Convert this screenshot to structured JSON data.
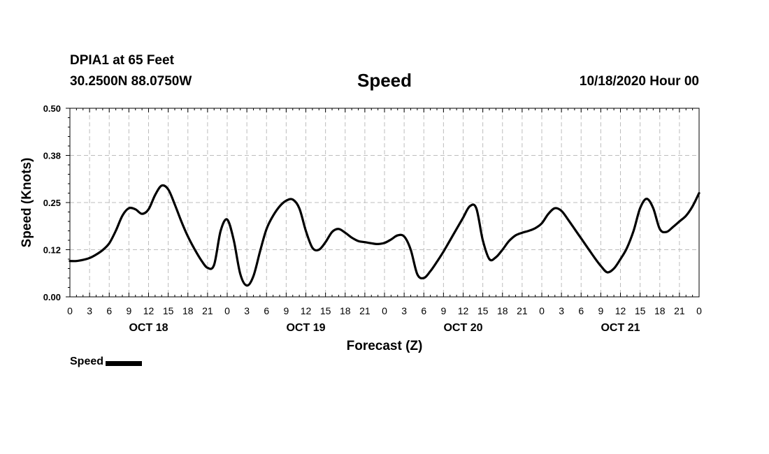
{
  "header": {
    "station": "DPIA1 at 65 Feet",
    "coordinates": "30.2500N 88.0750W",
    "run_time": "10/18/2020 Hour 00"
  },
  "chart_data": {
    "type": "line",
    "title": "Speed",
    "xlabel": "Forecast (Z)",
    "ylabel": "Speed (Knots)",
    "ylim": [
      0,
      0.5
    ],
    "xlim": [
      0,
      96
    ],
    "grid": true,
    "legend_position": "bottom-left",
    "y_ticks": [
      "0.00",
      "0.12",
      "0.25",
      "0.38",
      "0.50"
    ],
    "y_tick_values": [
      0,
      0.125,
      0.25,
      0.375,
      0.5
    ],
    "x_tick_labels": [
      "0",
      "3",
      "6",
      "9",
      "12",
      "15",
      "18",
      "21",
      "0",
      "3",
      "6",
      "9",
      "12",
      "15",
      "18",
      "21",
      "0",
      "3",
      "6",
      "9",
      "12",
      "15",
      "18",
      "21",
      "0",
      "3",
      "6",
      "9",
      "12",
      "15",
      "18",
      "21",
      "0"
    ],
    "day_labels": [
      {
        "label": "OCT 18",
        "hour": 12
      },
      {
        "label": "OCT 19",
        "hour": 36
      },
      {
        "label": "OCT 20",
        "hour": 60
      },
      {
        "label": "OCT 21",
        "hour": 84
      }
    ],
    "series": [
      {
        "name": "Speed",
        "color": "#000000",
        "x": [
          0,
          1,
          2,
          3,
          4,
          5,
          6,
          7,
          8,
          9,
          10,
          11,
          12,
          13,
          14,
          15,
          16,
          17,
          18,
          19,
          20,
          21,
          22,
          23,
          24,
          25,
          26,
          27,
          28,
          29,
          30,
          31,
          32,
          33,
          34,
          35,
          36,
          37,
          38,
          39,
          40,
          41,
          42,
          43,
          44,
          45,
          46,
          47,
          48,
          49,
          50,
          51,
          52,
          53,
          54,
          55,
          56,
          57,
          58,
          59,
          60,
          61,
          62,
          63,
          64,
          65,
          66,
          67,
          68,
          69,
          70,
          71,
          72,
          73,
          74,
          75,
          76,
          77,
          78,
          79,
          80,
          81,
          82,
          83,
          84,
          85,
          86,
          87,
          88,
          89,
          90,
          91,
          92,
          93,
          94,
          95,
          96
        ],
        "values": [
          0.095,
          0.095,
          0.098,
          0.103,
          0.112,
          0.124,
          0.142,
          0.175,
          0.215,
          0.235,
          0.232,
          0.22,
          0.232,
          0.27,
          0.295,
          0.285,
          0.245,
          0.2,
          0.16,
          0.127,
          0.098,
          0.077,
          0.085,
          0.175,
          0.205,
          0.15,
          0.06,
          0.03,
          0.055,
          0.12,
          0.18,
          0.215,
          0.24,
          0.255,
          0.258,
          0.235,
          0.175,
          0.13,
          0.125,
          0.145,
          0.172,
          0.18,
          0.17,
          0.157,
          0.148,
          0.145,
          0.142,
          0.14,
          0.143,
          0.152,
          0.163,
          0.16,
          0.125,
          0.06,
          0.05,
          0.068,
          0.093,
          0.12,
          0.15,
          0.18,
          0.21,
          0.24,
          0.235,
          0.15,
          0.1,
          0.105,
          0.125,
          0.148,
          0.163,
          0.17,
          0.175,
          0.182,
          0.195,
          0.22,
          0.235,
          0.228,
          0.205,
          0.18,
          0.155,
          0.13,
          0.105,
          0.082,
          0.065,
          0.075,
          0.1,
          0.13,
          0.175,
          0.235,
          0.26,
          0.235,
          0.18,
          0.172,
          0.185,
          0.2,
          0.215,
          0.24,
          0.275
        ]
      }
    ]
  },
  "legend": {
    "label": "Speed"
  }
}
